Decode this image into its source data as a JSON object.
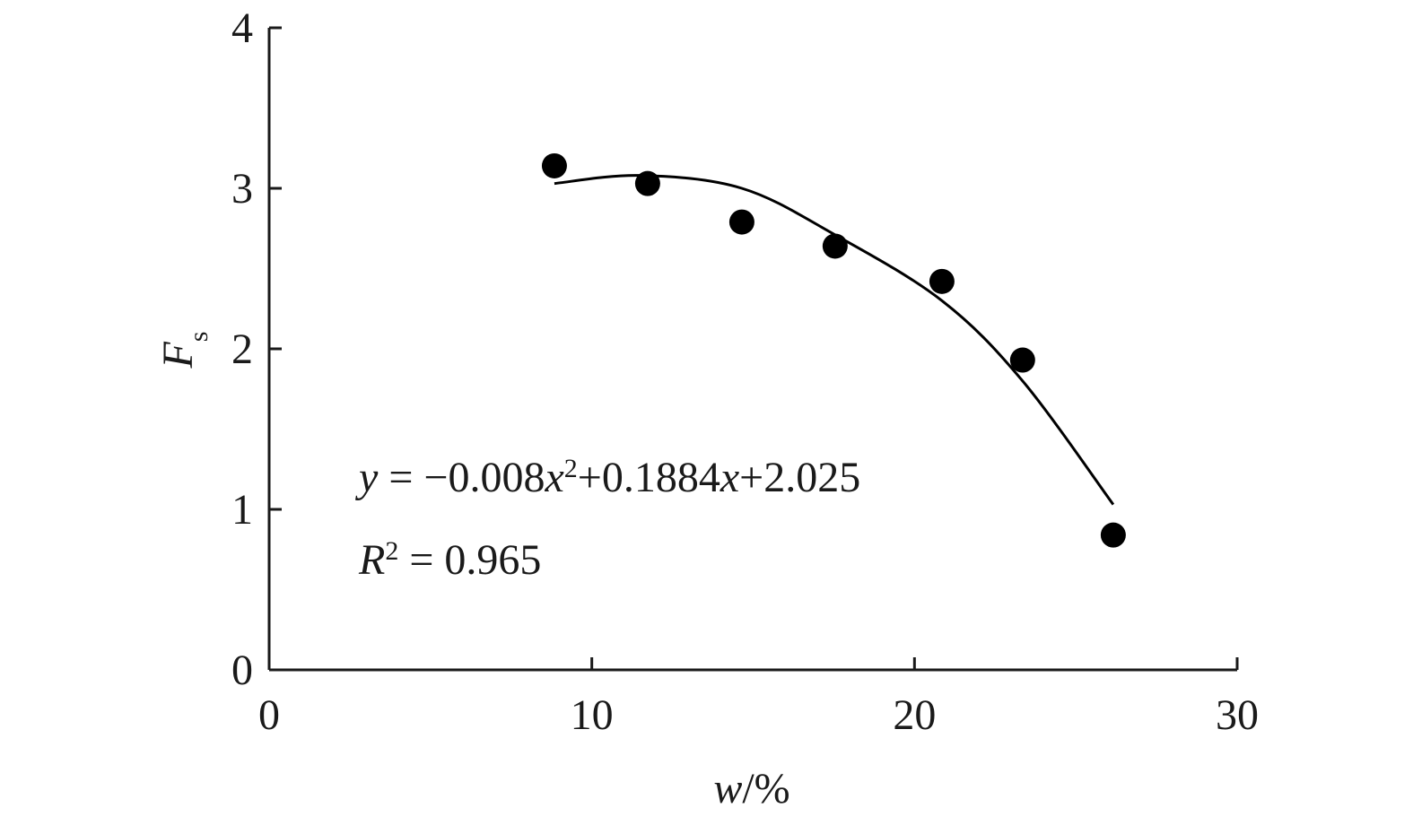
{
  "chart_data": {
    "type": "scatter",
    "x": [
      8.84,
      11.73,
      14.65,
      17.54,
      20.85,
      23.35,
      26.16
    ],
    "values": [
      3.14,
      3.03,
      2.79,
      2.64,
      2.42,
      1.93,
      0.84
    ],
    "color": "#000000",
    "fit": {
      "x": [
        8.84,
        11.5,
        14.65,
        17.54,
        20.85,
        23.35,
        26.16
      ],
      "values": [
        3.03,
        3.08,
        3.0,
        2.71,
        2.3,
        1.8,
        1.03
      ]
    },
    "xlabel": [
      {
        "text": "w",
        "italic": true
      },
      {
        "text": "/%"
      }
    ],
    "ylabel": [
      {
        "text": "F",
        "italic": true
      },
      {
        "text": "s",
        "sub": true
      }
    ],
    "annotations": [
      [
        {
          "text": "y",
          "italic": true
        },
        {
          "text": " = −0.008"
        },
        {
          "text": "x",
          "italic": true
        },
        {
          "text": "2",
          "sup": true
        },
        {
          "text": "+0.1884"
        },
        {
          "text": "x",
          "italic": true
        },
        {
          "text": "+2.025"
        }
      ],
      [
        {
          "text": "R",
          "italic": true
        },
        {
          "text": "2",
          "sup": true
        },
        {
          "text": " = 0.965"
        }
      ]
    ],
    "xlim": [
      0,
      30
    ],
    "xticks": [
      0,
      10,
      20,
      30
    ],
    "ylim": [
      0,
      4
    ],
    "yticks": [
      0,
      1,
      2,
      3,
      4
    ],
    "grid": false
  }
}
